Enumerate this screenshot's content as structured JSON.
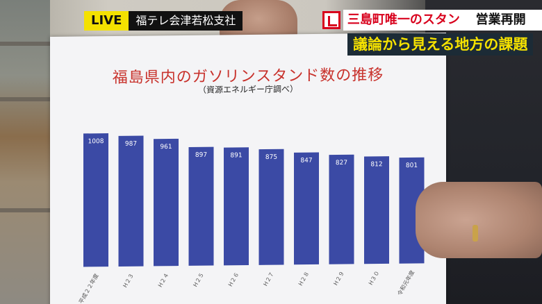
{
  "captions": {
    "live": "LIVE",
    "place": "福テレ会津若松支社",
    "topic_line1_red": "三島町唯一のスタンド",
    "topic_line1_black": "営業再開へ",
    "topic_line2": "議論から見える地方の課題"
  },
  "chart_data": {
    "type": "bar",
    "title": "福島県内のガソリンスタンド数の推移",
    "subtitle": "（資源エネルギー庁調べ）",
    "categories": [
      "平成２２年度",
      "H２３",
      "H２４",
      "H２５",
      "H２６",
      "H２７",
      "H２８",
      "H２９",
      "H３０",
      "令和元年度"
    ],
    "values": [
      1008,
      987,
      961,
      897,
      891,
      875,
      847,
      827,
      812,
      801
    ],
    "bar_color": "#3b4aa5",
    "ylim": [
      0,
      1060
    ]
  },
  "colors": {
    "title_red": "#c8322c",
    "live_yellow": "#f4e100",
    "topic_red": "#d8001c",
    "topic_yellow": "#f6e200"
  }
}
